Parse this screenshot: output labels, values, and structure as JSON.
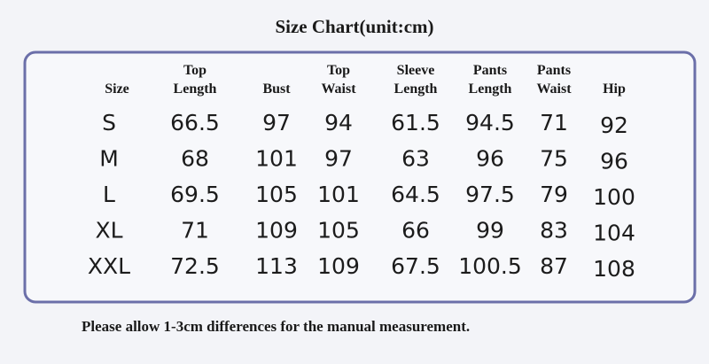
{
  "header": {
    "title": "Size Chart(unit:cm)"
  },
  "table": {
    "columns": [
      [
        "Size"
      ],
      [
        "Top",
        "Length"
      ],
      [
        "Bust"
      ],
      [
        "Top",
        "Waist"
      ],
      [
        "Sleeve",
        "Length"
      ],
      [
        "Pants",
        "Length"
      ],
      [
        "Pants",
        "Waist"
      ],
      [
        "Hip"
      ]
    ],
    "rows": [
      [
        "S",
        66.5,
        97,
        94,
        61.5,
        94.5,
        71,
        92
      ],
      [
        "M",
        68,
        101,
        97,
        63,
        96,
        75,
        96
      ],
      [
        "L",
        69.5,
        105,
        101,
        64.5,
        97.5,
        79,
        100
      ],
      [
        "XL",
        71,
        109,
        105,
        66,
        99,
        83,
        104
      ],
      [
        "XXL",
        72.5,
        113,
        109,
        67.5,
        100.5,
        87,
        108
      ]
    ]
  },
  "footer": {
    "note": "Please allow 1-3cm differences for the manual measurement."
  }
}
